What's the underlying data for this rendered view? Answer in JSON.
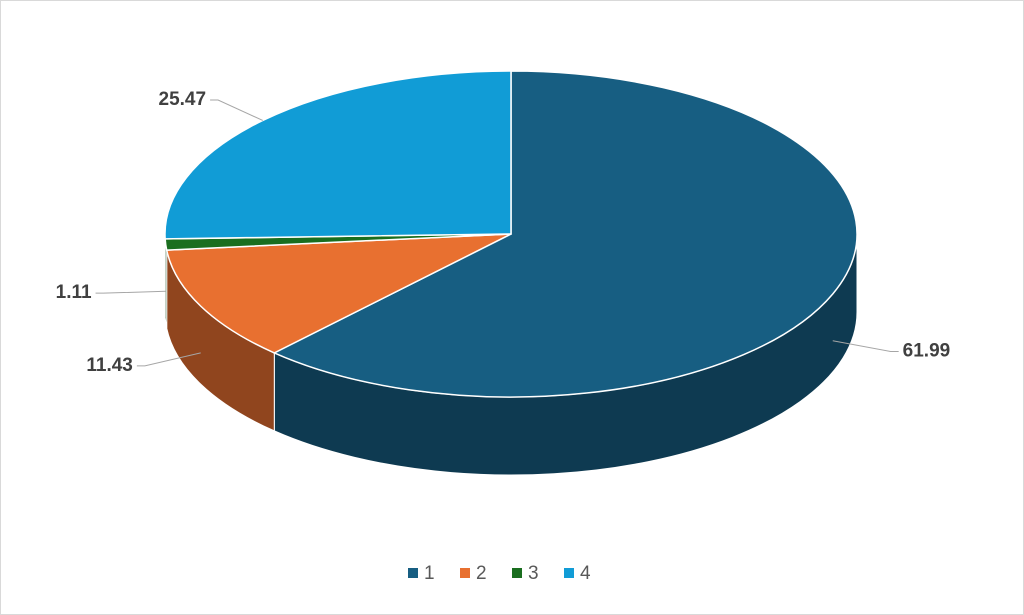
{
  "chart_data": {
    "type": "pie",
    "categories": [
      "1",
      "2",
      "3",
      "4"
    ],
    "values": [
      61.99,
      11.43,
      1.11,
      25.47
    ],
    "colors": [
      "#175e82",
      "#e87030",
      "#1a6e1f",
      "#119cd6"
    ],
    "legend": "bottom"
  }
}
